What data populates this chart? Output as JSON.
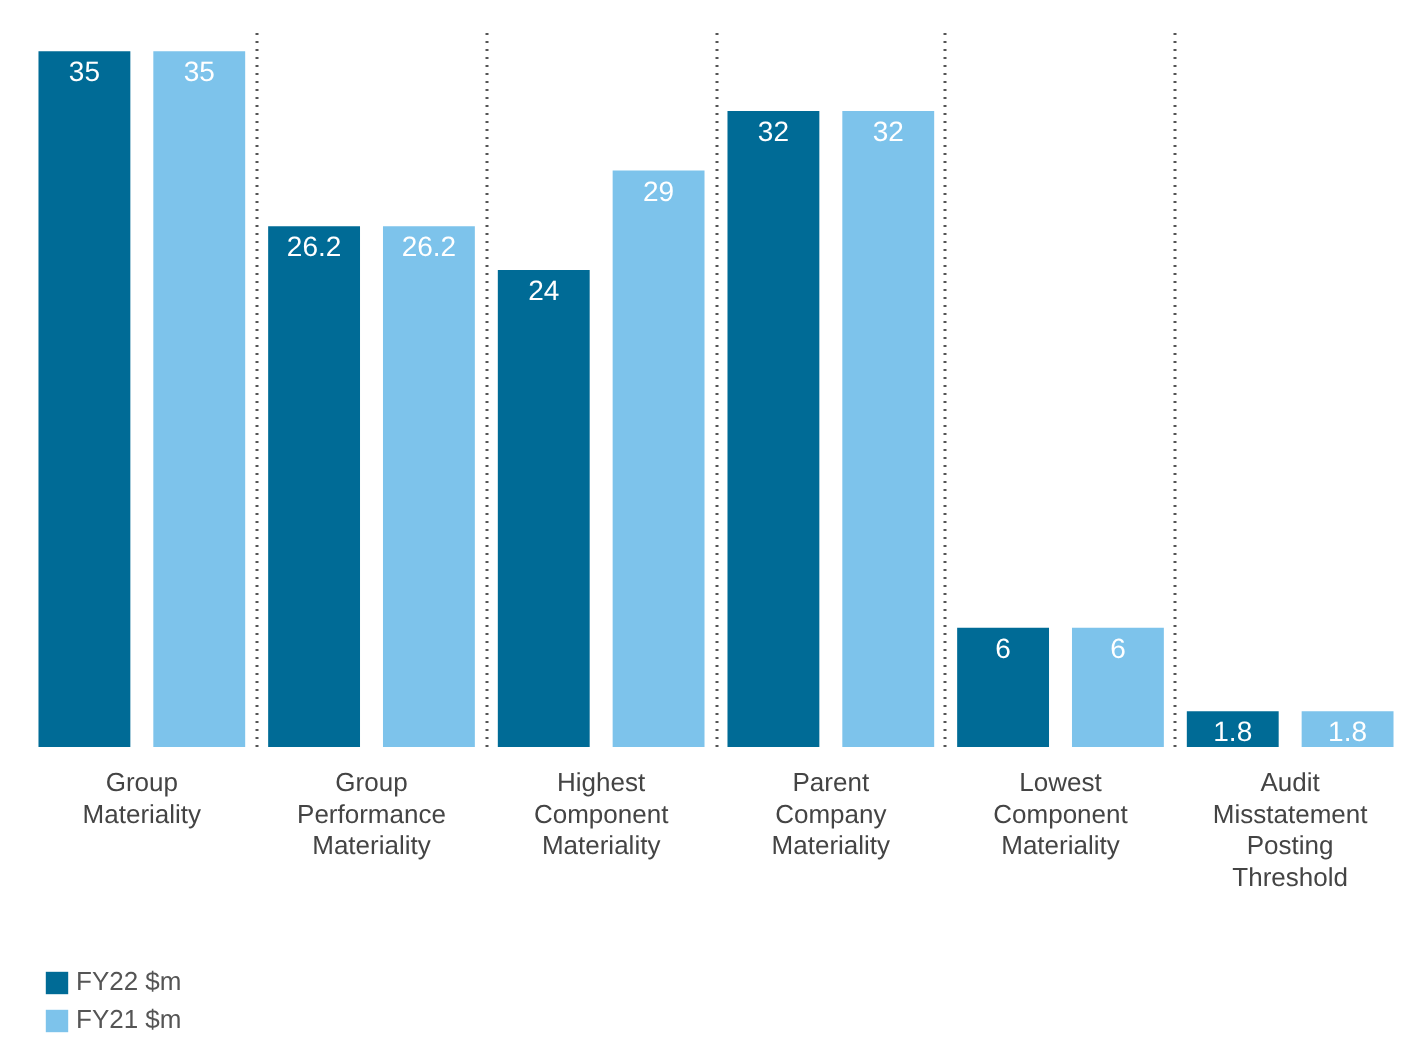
{
  "chart_data": {
    "type": "bar",
    "categories": [
      "Group Materiality",
      "Group Performance Materiality",
      "Highest Component Materiality",
      "Parent Company Materiality",
      "Lowest Component Materiality",
      "Audit Misstatement Posting Threshold"
    ],
    "series": [
      {
        "name": "FY22 $m",
        "color": "#006b96",
        "values": [
          35,
          26.2,
          24,
          32,
          6,
          1.8
        ]
      },
      {
        "name": "FY21 $m",
        "color": "#7dc3eb",
        "values": [
          35,
          26.2,
          29,
          32,
          6,
          1.8
        ]
      }
    ],
    "data_labels": true,
    "grid": "x",
    "legend": "bottom left"
  }
}
